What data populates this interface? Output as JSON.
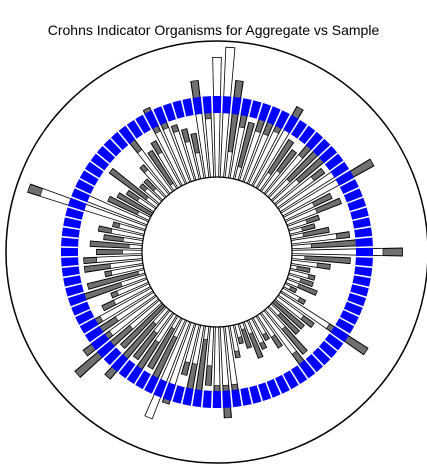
{
  "chart_data": {
    "type": "radial_bar",
    "title": "Crohns Indicator Organisms for Aggregate vs Sample",
    "n_sectors": 96,
    "value_range": [
      0,
      1
    ],
    "colors": {
      "ring_segment": "#0000ff",
      "aggregate": "#ffffff",
      "sample": "#707070",
      "outline": "#000000"
    },
    "series": [
      {
        "name": "",
        "color": "#ffffff",
        "values": [
          0.92,
          1.0,
          0.75,
          0.55,
          0.45,
          0.5,
          0.6,
          0.5,
          0.7,
          0.45,
          0.4,
          0.5,
          0.6,
          0.55,
          0.45,
          0.6,
          0.8,
          0.4,
          0.45,
          0.25,
          0.2,
          0.3,
          0.45,
          0.55,
          0.85,
          0.45,
          0.3,
          0.15,
          0.2,
          0.2,
          0.25,
          0.1,
          0.2,
          0.8,
          0.35,
          0.3,
          0.3,
          0.45,
          0.5,
          0.3,
          0.2,
          0.25,
          0.3,
          0.2,
          0.15,
          0.25,
          0.55,
          0.7,
          0.55,
          0.45,
          0.6,
          0.5,
          0.4,
          0.65,
          0.8,
          0.55,
          0.45,
          0.5,
          0.45,
          0.7,
          0.45,
          0.85,
          0.7,
          0.55,
          0.5,
          0.4,
          0.3,
          0.5,
          0.45,
          0.3,
          0.45,
          0.45,
          0.35,
          0.4,
          0.3,
          0.35,
          0.25,
          0.95,
          0.6,
          0.35,
          0.3,
          0.25,
          0.45,
          0.2,
          0.2,
          0.3,
          0.55,
          0.35,
          0.4,
          0.65,
          0.55,
          0.45,
          0.4,
          0.35,
          0.75,
          0.5
        ]
      },
      {
        "name": "",
        "color": "#707070",
        "values": [
          0.0,
          0.0,
          0.55,
          0.15,
          0.35,
          0.1,
          0.2,
          0.05,
          0.15,
          0.3,
          0.2,
          0.1,
          0.4,
          0.3,
          0.1,
          0.0,
          0.2,
          0.15,
          0.2,
          0.1,
          0.1,
          0.2,
          0.1,
          0.4,
          0.15,
          0.35,
          0.1,
          0.1,
          0.05,
          0.1,
          0.15,
          0.05,
          0.05,
          0.35,
          0.1,
          0.3,
          0.2,
          0.25,
          0.1,
          0.1,
          0.05,
          0.05,
          0.2,
          0.15,
          0.05,
          0.05,
          0.1,
          0.25,
          0.1,
          0.15,
          0.5,
          0.2,
          0.1,
          0.15,
          0.0,
          0.4,
          0.35,
          0.25,
          0.25,
          0.55,
          0.45,
          0.55,
          0.25,
          0.2,
          0.05,
          0.1,
          0.05,
          0.3,
          0.4,
          0.05,
          0.2,
          0.1,
          0.2,
          0.3,
          0.15,
          0.1,
          0.05,
          0.1,
          0.1,
          0.25,
          0.35,
          0.1,
          0.35,
          0.05,
          0.1,
          0.05,
          0.15,
          0.3,
          0.1,
          0.2,
          0.1,
          0.05,
          0.1,
          0.15,
          0.2,
          0.05
        ]
      }
    ]
  }
}
